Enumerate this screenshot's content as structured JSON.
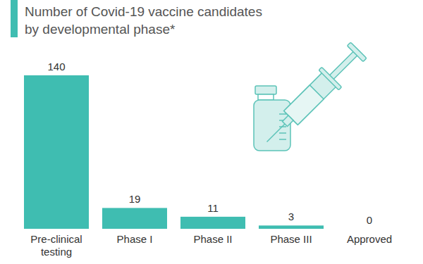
{
  "chart_data": {
    "type": "bar",
    "title": "Number of Covid-19 vaccine candidates by developmental phase*",
    "categories": [
      "Pre-clinical testing",
      "Phase I",
      "Phase II",
      "Phase III",
      "Approved"
    ],
    "values": [
      140,
      19,
      11,
      3,
      0
    ],
    "color": "#3fbdb1",
    "ylim": [
      0,
      140
    ],
    "data_labels": true,
    "tick_labels": "x",
    "grid": false
  }
}
